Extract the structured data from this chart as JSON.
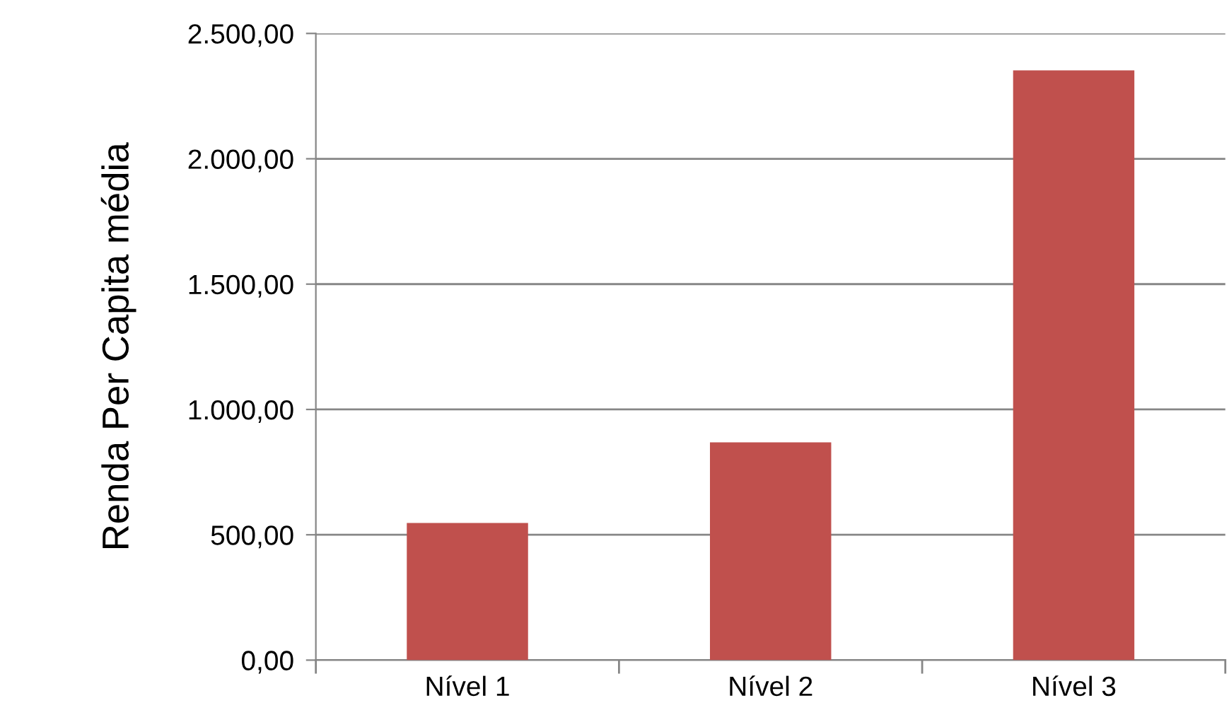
{
  "chart_data": {
    "type": "bar",
    "ylabel": "Renda Per Capita média",
    "categories": [
      "Nível 1",
      "Nível 2",
      "Nível 3"
    ],
    "values": [
      547,
      869,
      2353
    ],
    "color": "#c0504d",
    "ylim": [
      0,
      2500
    ],
    "yticks": [
      {
        "value": 0,
        "label": "0,00"
      },
      {
        "value": 500,
        "label": "500,00"
      },
      {
        "value": 1000,
        "label": "1.000,00"
      },
      {
        "value": 1500,
        "label": "1.500,00"
      },
      {
        "value": 2000,
        "label": "2.000,00"
      },
      {
        "value": 2500,
        "label": "2.500,00"
      }
    ],
    "grid": "y"
  }
}
